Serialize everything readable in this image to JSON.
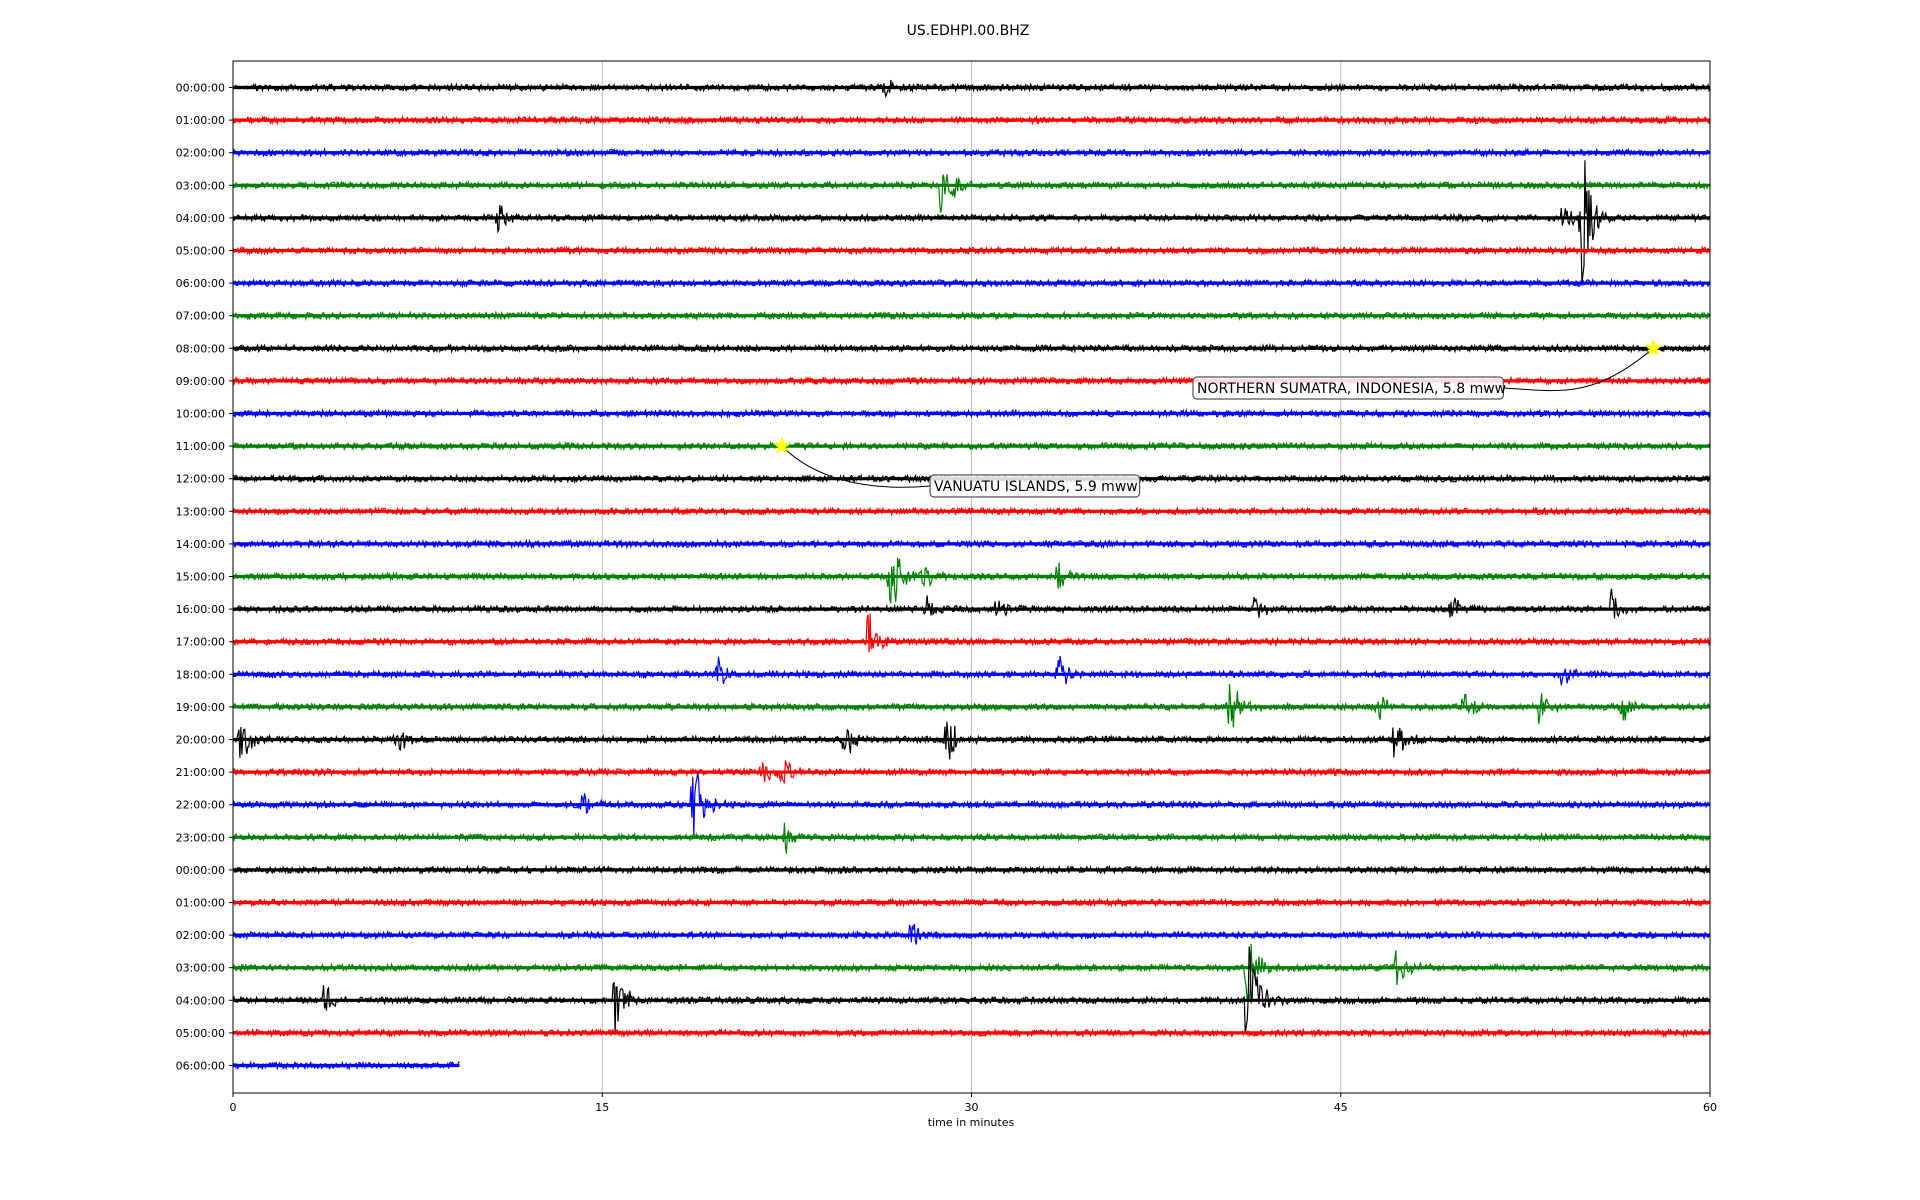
{
  "chart_data": {
    "type": "line",
    "title": "US.EDHPI.00.BHZ",
    "xlabel": "time in minutes",
    "ylabel": "",
    "xlim": [
      0,
      60
    ],
    "xticks": [
      "0",
      "15",
      "30",
      "45",
      "60"
    ],
    "x_gridlines": [
      15,
      30,
      45
    ],
    "row_interval_minutes": 60,
    "color_cycle": [
      "#000000",
      "#ff0000",
      "#0000ff",
      "#008000"
    ],
    "rows": [
      {
        "label": "00:00:00",
        "end_minute": 60
      },
      {
        "label": "01:00:00",
        "end_minute": 60
      },
      {
        "label": "02:00:00",
        "end_minute": 60
      },
      {
        "label": "03:00:00",
        "end_minute": 60
      },
      {
        "label": "04:00:00",
        "end_minute": 60
      },
      {
        "label": "05:00:00",
        "end_minute": 60
      },
      {
        "label": "06:00:00",
        "end_minute": 60
      },
      {
        "label": "07:00:00",
        "end_minute": 60
      },
      {
        "label": "08:00:00",
        "end_minute": 60
      },
      {
        "label": "09:00:00",
        "end_minute": 60
      },
      {
        "label": "10:00:00",
        "end_minute": 60
      },
      {
        "label": "11:00:00",
        "end_minute": 60
      },
      {
        "label": "12:00:00",
        "end_minute": 60
      },
      {
        "label": "13:00:00",
        "end_minute": 60
      },
      {
        "label": "14:00:00",
        "end_minute": 60
      },
      {
        "label": "15:00:00",
        "end_minute": 60
      },
      {
        "label": "16:00:00",
        "end_minute": 60
      },
      {
        "label": "17:00:00",
        "end_minute": 60
      },
      {
        "label": "18:00:00",
        "end_minute": 60
      },
      {
        "label": "19:00:00",
        "end_minute": 60
      },
      {
        "label": "20:00:00",
        "end_minute": 60
      },
      {
        "label": "21:00:00",
        "end_minute": 60
      },
      {
        "label": "22:00:00",
        "end_minute": 60
      },
      {
        "label": "23:00:00",
        "end_minute": 60
      },
      {
        "label": "00:00:00",
        "end_minute": 60
      },
      {
        "label": "01:00:00",
        "end_minute": 60
      },
      {
        "label": "02:00:00",
        "end_minute": 60
      },
      {
        "label": "03:00:00",
        "end_minute": 60
      },
      {
        "label": "04:00:00",
        "end_minute": 60
      },
      {
        "label": "05:00:00",
        "end_minute": 60
      },
      {
        "label": "06:00:00",
        "end_minute": 9.2
      }
    ],
    "bursts": [
      {
        "row": 0,
        "minute": 26.5,
        "amp": 0.35
      },
      {
        "row": 3,
        "minute": 28.8,
        "amp": 1.3
      },
      {
        "row": 4,
        "minute": 10.8,
        "amp": 0.5
      },
      {
        "row": 4,
        "minute": 54.0,
        "amp": 0.5
      },
      {
        "row": 4,
        "minute": 54.8,
        "amp": 2.5
      },
      {
        "row": 15,
        "minute": 26.7,
        "amp": 1.7
      },
      {
        "row": 15,
        "minute": 28.0,
        "amp": 0.6
      },
      {
        "row": 15,
        "minute": 33.5,
        "amp": 0.6
      },
      {
        "row": 16,
        "minute": 28.2,
        "amp": 0.5
      },
      {
        "row": 16,
        "minute": 31.0,
        "amp": 0.4
      },
      {
        "row": 16,
        "minute": 41.5,
        "amp": 0.6
      },
      {
        "row": 16,
        "minute": 49.5,
        "amp": 0.4
      },
      {
        "row": 16,
        "minute": 56.0,
        "amp": 0.6
      },
      {
        "row": 17,
        "minute": 25.8,
        "amp": 1.0
      },
      {
        "row": 18,
        "minute": 19.7,
        "amp": 0.6
      },
      {
        "row": 18,
        "minute": 33.5,
        "amp": 0.7
      },
      {
        "row": 18,
        "minute": 54.0,
        "amp": 0.6
      },
      {
        "row": 19,
        "minute": 40.5,
        "amp": 1.0
      },
      {
        "row": 19,
        "minute": 46.5,
        "amp": 0.6
      },
      {
        "row": 19,
        "minute": 50.0,
        "amp": 0.6
      },
      {
        "row": 19,
        "minute": 53.0,
        "amp": 0.6
      },
      {
        "row": 19,
        "minute": 56.4,
        "amp": 0.6
      },
      {
        "row": 20,
        "minute": 0.3,
        "amp": 0.8
      },
      {
        "row": 20,
        "minute": 6.6,
        "amp": 0.6
      },
      {
        "row": 20,
        "minute": 24.8,
        "amp": 0.8
      },
      {
        "row": 20,
        "minute": 29.0,
        "amp": 0.9
      },
      {
        "row": 20,
        "minute": 47.2,
        "amp": 0.8
      },
      {
        "row": 21,
        "minute": 21.5,
        "amp": 0.9
      },
      {
        "row": 21,
        "minute": 22.3,
        "amp": 0.6
      },
      {
        "row": 22,
        "minute": 14.2,
        "amp": 0.5
      },
      {
        "row": 22,
        "minute": 18.7,
        "amp": 1.7
      },
      {
        "row": 23,
        "minute": 22.4,
        "amp": 0.6
      },
      {
        "row": 26,
        "minute": 27.5,
        "amp": 0.5
      },
      {
        "row": 27,
        "minute": 41.2,
        "amp": 1.2
      },
      {
        "row": 27,
        "minute": 47.3,
        "amp": 0.9
      },
      {
        "row": 28,
        "minute": 3.7,
        "amp": 0.6
      },
      {
        "row": 28,
        "minute": 15.5,
        "amp": 1.4
      },
      {
        "row": 28,
        "minute": 41.2,
        "amp": 2.5
      }
    ],
    "events": [
      {
        "row": 8,
        "minute": 57.7,
        "label": "NORTHERN SUMATRA, INDONESIA, 5.8 mww"
      },
      {
        "row": 11,
        "minute": 22.3,
        "label": "VANUATU ISLANDS, 5.9 mww"
      }
    ],
    "event_marker_color": "#ffff00"
  }
}
